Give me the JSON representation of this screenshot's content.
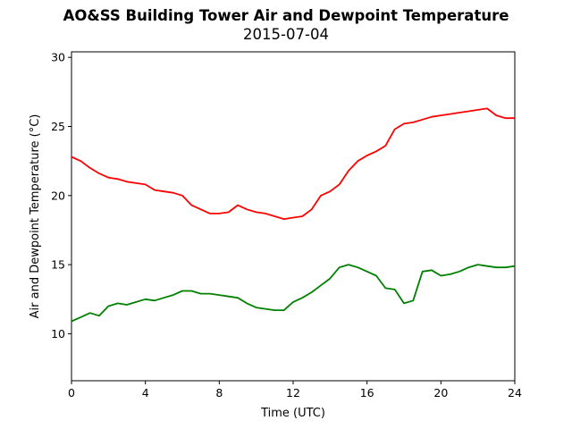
{
  "chart_data": {
    "type": "line",
    "title": "AO&SS Building Tower Air and Dewpoint Temperature",
    "subtitle": "2015-07-04",
    "xlabel": "Time (UTC)",
    "ylabel": "Air and Dewpoint Temperature (°C)",
    "xlim": [
      0,
      24
    ],
    "ylim": [
      6.6,
      30.4
    ],
    "xticks": [
      0,
      4,
      8,
      12,
      16,
      20,
      24
    ],
    "yticks": [
      10,
      15,
      20,
      25,
      30
    ],
    "grid": false,
    "legend": "none",
    "series": [
      {
        "color": "#ff0000",
        "x": [
          0,
          0.5,
          1,
          1.5,
          2,
          2.5,
          3,
          3.5,
          4,
          4.5,
          5,
          5.5,
          6,
          6.5,
          7,
          7.5,
          8,
          8.5,
          9,
          9.5,
          10,
          10.5,
          11,
          11.5,
          12,
          12.5,
          13,
          13.5,
          14,
          14.5,
          15,
          15.5,
          16,
          16.5,
          17,
          17.5,
          18,
          18.5,
          19,
          19.5,
          20,
          20.5,
          21,
          21.5,
          22,
          22.5,
          23,
          23.5,
          24
        ],
        "y": [
          22.8,
          22.5,
          22.0,
          21.6,
          21.3,
          21.2,
          21.0,
          20.9,
          20.8,
          20.4,
          20.3,
          20.2,
          20.0,
          19.3,
          19.0,
          18.7,
          18.7,
          18.8,
          19.3,
          19.0,
          18.8,
          18.7,
          18.5,
          18.3,
          18.4,
          18.5,
          19.0,
          20.0,
          20.3,
          20.8,
          21.8,
          22.5,
          22.9,
          23.2,
          23.6,
          24.8,
          25.2,
          25.3,
          25.5,
          25.7,
          25.8,
          25.9,
          26.0,
          26.1,
          26.2,
          26.3,
          25.8,
          25.6,
          25.6
        ]
      },
      {
        "color": "#008000",
        "x": [
          0,
          0.5,
          1,
          1.5,
          2,
          2.5,
          3,
          3.5,
          4,
          4.5,
          5,
          5.5,
          6,
          6.5,
          7,
          7.5,
          8,
          8.5,
          9,
          9.5,
          10,
          10.5,
          11,
          11.5,
          12,
          12.5,
          13,
          13.5,
          14,
          14.5,
          15,
          15.5,
          16,
          16.5,
          17,
          17.5,
          18,
          18.5,
          19,
          19.5,
          20,
          20.5,
          21,
          21.5,
          22,
          22.5,
          23,
          23.5,
          24
        ],
        "y": [
          10.9,
          11.2,
          11.5,
          11.3,
          12.0,
          12.2,
          12.1,
          12.3,
          12.5,
          12.4,
          12.6,
          12.8,
          13.1,
          13.1,
          12.9,
          12.9,
          12.8,
          12.7,
          12.6,
          12.2,
          11.9,
          11.8,
          11.7,
          11.7,
          12.3,
          12.6,
          13.0,
          13.5,
          14.0,
          14.8,
          15.0,
          14.8,
          14.5,
          14.2,
          13.3,
          13.2,
          12.2,
          12.4,
          14.5,
          14.6,
          14.2,
          14.3,
          14.5,
          14.8,
          15.0,
          14.9,
          14.8,
          14.8,
          14.9
        ]
      }
    ]
  }
}
